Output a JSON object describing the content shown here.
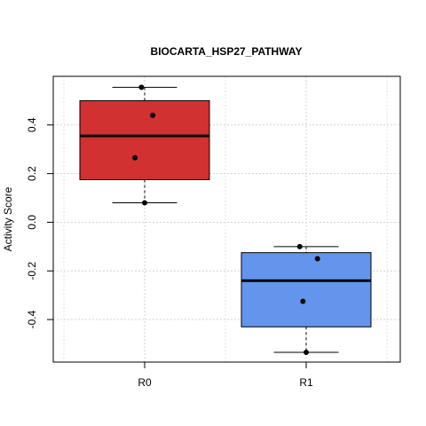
{
  "chart_data": {
    "type": "boxplot",
    "title": "BIOCARTA_HSP27_PATHWAY",
    "xlabel": "",
    "ylabel": "Activity Score",
    "categories": [
      "R0",
      "R1"
    ],
    "ylim": [
      -0.575,
      0.6
    ],
    "yticks": [
      -0.4,
      -0.2,
      0.0,
      0.2,
      0.4
    ],
    "ytick_labels": [
      "-0.4",
      "-0.2",
      "0.0",
      "0.2",
      "0.4"
    ],
    "grid": true,
    "boxes": [
      {
        "name": "R0",
        "color": "#d13131",
        "min": 0.08,
        "q1": 0.175,
        "median": 0.355,
        "q3": 0.5,
        "max": 0.555
      },
      {
        "name": "R1",
        "color": "#6495ed",
        "min": -0.535,
        "q1": -0.43,
        "median": -0.24,
        "q3": -0.125,
        "max": -0.1
      }
    ],
    "points": [
      {
        "group": "R0",
        "y": 0.555,
        "jitter": -0.02
      },
      {
        "group": "R0",
        "y": 0.44,
        "jitter": 0.05
      },
      {
        "group": "R0",
        "y": 0.265,
        "jitter": -0.06
      },
      {
        "group": "R0",
        "y": 0.08,
        "jitter": 0.0
      },
      {
        "group": "R1",
        "y": -0.1,
        "jitter": -0.04
      },
      {
        "group": "R1",
        "y": -0.15,
        "jitter": 0.07
      },
      {
        "group": "R1",
        "y": -0.325,
        "jitter": -0.02
      },
      {
        "group": "R1",
        "y": -0.535,
        "jitter": 0.0
      }
    ]
  }
}
